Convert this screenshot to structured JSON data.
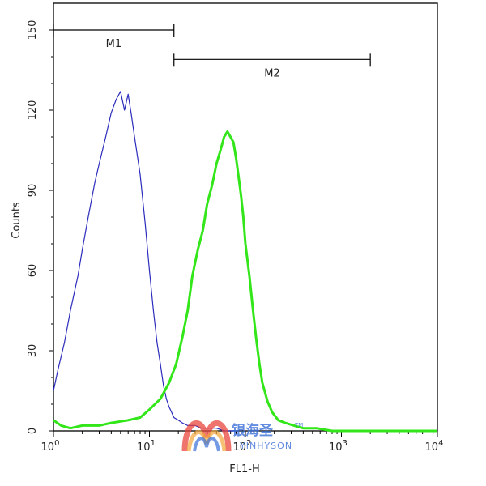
{
  "chart_data": {
    "type": "line",
    "title": "",
    "xlabel": "FL1-H",
    "ylabel": "Counts",
    "x_scale": "log",
    "xlim": [
      1,
      10000
    ],
    "ylim": [
      0,
      160
    ],
    "grid": false,
    "x_tick_labels": [
      {
        "value": 1,
        "base": "10",
        "exp": "0"
      },
      {
        "value": 10,
        "base": "10",
        "exp": "1"
      },
      {
        "value": 100,
        "base": "10",
        "exp": "2"
      },
      {
        "value": 1000,
        "base": "10",
        "exp": "3"
      },
      {
        "value": 10000,
        "base": "10",
        "exp": "4"
      }
    ],
    "y_ticks": [
      0,
      30,
      60,
      90,
      120,
      150
    ],
    "y_tick_labels": [
      "0",
      "30",
      "60",
      "90",
      "120",
      "150"
    ],
    "markers": [
      {
        "label": "M1",
        "x_start": 1,
        "x_end": 18,
        "y": 150
      },
      {
        "label": "M2",
        "x_start": 18,
        "x_end": 2000,
        "y": 139
      }
    ],
    "series": [
      {
        "color": "#2b2bbd",
        "x": [
          1.0,
          1.1,
          1.3,
          1.5,
          1.8,
          2.0,
          2.3,
          2.7,
          3.0,
          3.5,
          4.0,
          4.5,
          5.0,
          5.5,
          6.0,
          6.5,
          7.0,
          8.0,
          9.0,
          10.0,
          11.0,
          12.0,
          13.0,
          14.0,
          15.0,
          16.0,
          17.0,
          18.0,
          20.0,
          22.0,
          25.0,
          30.0,
          35.0,
          40.0,
          50.0,
          60.0,
          70.0,
          80.0
        ],
        "values": [
          15,
          22,
          33,
          45,
          58,
          68,
          80,
          93,
          100,
          110,
          119,
          124,
          127,
          120,
          126,
          118,
          110,
          96,
          78,
          60,
          45,
          33,
          25,
          17,
          12,
          9,
          7,
          5,
          4,
          3,
          2,
          2,
          1,
          1,
          1,
          0,
          0,
          0
        ]
      },
      {
        "color": "#33e61a",
        "x": [
          1.0,
          1.2,
          1.5,
          2.0,
          3.0,
          4.0,
          6.0,
          8.0,
          10.0,
          13.0,
          16.0,
          19.0,
          22.0,
          25.0,
          28.0,
          32.0,
          36.0,
          40.0,
          45.0,
          50.0,
          55.0,
          60.0,
          65.0,
          70.0,
          75.0,
          80.0,
          85.0,
          90.0,
          95.0,
          100.0,
          110.0,
          120.0,
          130.0,
          140.0,
          150.0,
          170.0,
          190.0,
          220.0,
          260.0,
          320.0,
          400.0,
          550.0,
          800.0,
          1500.0,
          3000.0,
          10000.0
        ],
        "values": [
          4,
          2,
          1,
          2,
          2,
          3,
          4,
          5,
          8,
          12,
          18,
          25,
          35,
          45,
          58,
          68,
          75,
          85,
          92,
          100,
          105,
          110,
          112,
          110,
          108,
          102,
          95,
          88,
          80,
          70,
          58,
          45,
          34,
          25,
          18,
          11,
          7,
          4,
          3,
          2,
          1,
          1,
          0,
          0,
          0,
          0
        ]
      }
    ]
  },
  "watermark": {
    "chinese": "银海圣",
    "english": "YINHYSON",
    "trademark": "TM"
  }
}
